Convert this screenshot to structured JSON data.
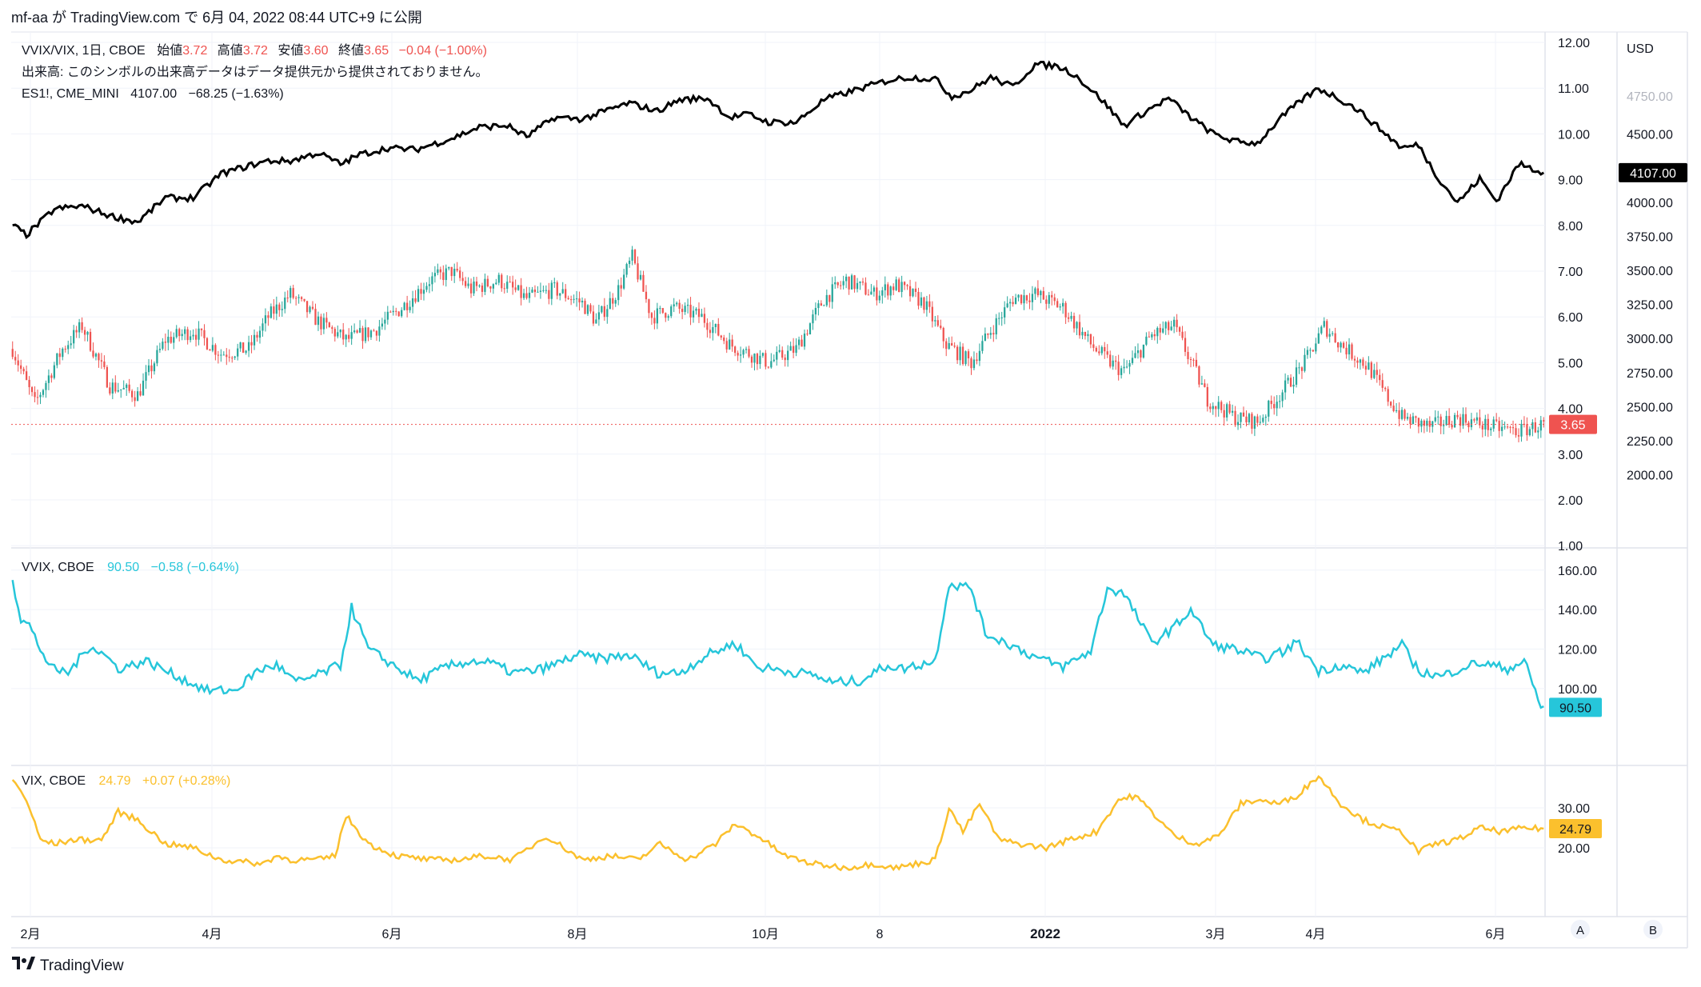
{
  "header": {
    "publish_text": "mf-aa が TradingView.com で 6月 04, 2022 08:44 UTC+9 に公開"
  },
  "footer": {
    "brand": "TradingView"
  },
  "scale_buttons": {
    "a": "A",
    "b": "B"
  },
  "colors": {
    "up": "#26a69a",
    "down": "#ef5350",
    "es": "#000000",
    "vvix": "#26c6da",
    "vix": "#fbc02d",
    "grid": "#f0f3fa",
    "border": "#e0e3eb",
    "text": "#131722"
  },
  "main_pane": {
    "legend": {
      "symbol": "VVIX/VIX, 1日, CBOE",
      "o_label": "始値",
      "o_val": "3.72",
      "h_label": "高値",
      "h_val": "3.72",
      "l_label": "安値",
      "l_val": "3.60",
      "c_label": "終値",
      "c_val": "3.65",
      "chg": "−0.04 (−1.00%)",
      "volume_note": "出来高: このシンボルの出来高データはデータ提供元から提供されておりません。",
      "es_symbol": "ES1!, CME_MINI",
      "es_val": "4107.00",
      "es_chg": "−68.25 (−1.63%)"
    },
    "right_axis_ticks": [
      "12.00",
      "11.00",
      "10.00",
      "9.00",
      "8.00",
      "7.00",
      "6.00",
      "5.00",
      "4.00",
      "3.00",
      "2.00",
      "1.00"
    ],
    "usd_label": "USD",
    "usd_ticks": [
      "4750.00",
      "4500.00",
      "4250.00",
      "4000.00",
      "3750.00",
      "3500.00",
      "3250.00",
      "3000.00",
      "2750.00",
      "2500.00",
      "2250.00",
      "2000.00"
    ],
    "last_ratio_label": "3.65",
    "last_es_label": "4107.00"
  },
  "vvix_pane": {
    "legend": {
      "symbol": "VVIX, CBOE",
      "val": "90.50",
      "chg": "−0.58 (−0.64%)"
    },
    "ticks": [
      "160.00",
      "140.00",
      "120.00",
      "100.00"
    ],
    "last_label": "90.50"
  },
  "vix_pane": {
    "legend": {
      "symbol": "VIX, CBOE",
      "val": "24.79",
      "chg": "+0.07 (+0.28%)"
    },
    "ticks": [
      "30.00",
      "20.00"
    ],
    "last_label": "24.79"
  },
  "x_axis": {
    "labels": [
      "2月",
      "4月",
      "6月",
      "8月",
      "10月",
      "8",
      "2022",
      "3月",
      "4月",
      "6月"
    ]
  },
  "chart_data": [
    {
      "type": "candlestick",
      "series_name": "VVIX/VIX",
      "ylim": [
        1,
        12
      ],
      "waypoints": [
        [
          0,
          5.3
        ],
        [
          8,
          4.1
        ],
        [
          18,
          5.3
        ],
        [
          25,
          5.8
        ],
        [
          35,
          4.5
        ],
        [
          45,
          4.3
        ],
        [
          55,
          5.5
        ],
        [
          65,
          5.7
        ],
        [
          75,
          5.2
        ],
        [
          85,
          5.3
        ],
        [
          92,
          6.0
        ],
        [
          100,
          6.5
        ],
        [
          110,
          5.9
        ],
        [
          120,
          5.5
        ],
        [
          130,
          5.7
        ],
        [
          140,
          6.2
        ],
        [
          150,
          6.8
        ],
        [
          158,
          7.0
        ],
        [
          165,
          6.6
        ],
        [
          175,
          6.8
        ],
        [
          185,
          6.4
        ],
        [
          195,
          6.6
        ],
        [
          205,
          6.3
        ],
        [
          210,
          5.9
        ],
        [
          218,
          6.6
        ],
        [
          223,
          7.3
        ],
        [
          230,
          6.0
        ],
        [
          238,
          6.2
        ],
        [
          248,
          6.0
        ],
        [
          258,
          5.4
        ],
        [
          265,
          5.2
        ],
        [
          272,
          5.0
        ],
        [
          282,
          5.3
        ],
        [
          292,
          6.4
        ],
        [
          300,
          6.8
        ],
        [
          310,
          6.5
        ],
        [
          318,
          6.7
        ],
        [
          328,
          6.3
        ],
        [
          336,
          5.4
        ],
        [
          345,
          5.0
        ],
        [
          352,
          5.7
        ],
        [
          360,
          6.4
        ],
        [
          368,
          6.5
        ],
        [
          378,
          6.2
        ],
        [
          388,
          5.4
        ],
        [
          395,
          5.0
        ],
        [
          400,
          4.8
        ],
        [
          410,
          5.6
        ],
        [
          418,
          5.8
        ],
        [
          425,
          4.9
        ],
        [
          430,
          4.2
        ],
        [
          440,
          3.8
        ],
        [
          448,
          3.7
        ],
        [
          456,
          4.3
        ],
        [
          465,
          5.0
        ],
        [
          472,
          5.8
        ],
        [
          478,
          5.4
        ],
        [
          488,
          4.9
        ],
        [
          494,
          4.3
        ],
        [
          500,
          3.8
        ],
        [
          510,
          3.6
        ],
        [
          520,
          3.8
        ],
        [
          532,
          3.6
        ],
        [
          542,
          3.5
        ],
        [
          551,
          3.65
        ]
      ]
    },
    {
      "type": "line",
      "series_name": "ES1!",
      "ylim": [
        1788,
        4917
      ],
      "waypoints": [
        [
          0,
          3780
        ],
        [
          5,
          3720
        ],
        [
          15,
          3880
        ],
        [
          25,
          3900
        ],
        [
          35,
          3840
        ],
        [
          45,
          3800
        ],
        [
          55,
          3950
        ],
        [
          65,
          3950
        ],
        [
          75,
          4100
        ],
        [
          85,
          4150
        ],
        [
          92,
          4180
        ],
        [
          100,
          4180
        ],
        [
          110,
          4230
        ],
        [
          118,
          4160
        ],
        [
          125,
          4220
        ],
        [
          135,
          4260
        ],
        [
          145,
          4250
        ],
        [
          158,
          4320
        ],
        [
          168,
          4390
        ],
        [
          178,
          4400
        ],
        [
          185,
          4330
        ],
        [
          195,
          4450
        ],
        [
          205,
          4440
        ],
        [
          215,
          4500
        ],
        [
          222,
          4540
        ],
        [
          232,
          4490
        ],
        [
          240,
          4560
        ],
        [
          250,
          4570
        ],
        [
          258,
          4450
        ],
        [
          265,
          4470
        ],
        [
          272,
          4420
        ],
        [
          282,
          4420
        ],
        [
          292,
          4560
        ],
        [
          305,
          4630
        ],
        [
          315,
          4680
        ],
        [
          322,
          4700
        ],
        [
          332,
          4690
        ],
        [
          338,
          4580
        ],
        [
          345,
          4620
        ],
        [
          352,
          4700
        ],
        [
          360,
          4640
        ],
        [
          368,
          4780
        ],
        [
          376,
          4770
        ],
        [
          382,
          4720
        ],
        [
          392,
          4560
        ],
        [
          400,
          4400
        ],
        [
          408,
          4490
        ],
        [
          416,
          4570
        ],
        [
          424,
          4450
        ],
        [
          432,
          4350
        ],
        [
          440,
          4300
        ],
        [
          448,
          4290
        ],
        [
          456,
          4440
        ],
        [
          464,
          4560
        ],
        [
          470,
          4630
        ],
        [
          476,
          4580
        ],
        [
          484,
          4500
        ],
        [
          492,
          4380
        ],
        [
          500,
          4260
        ],
        [
          506,
          4280
        ],
        [
          512,
          4100
        ],
        [
          520,
          3920
        ],
        [
          528,
          4070
        ],
        [
          534,
          3930
        ],
        [
          542,
          4160
        ],
        [
          551,
          4107
        ]
      ]
    },
    {
      "type": "line",
      "series_name": "VVIX",
      "ylim": [
        87,
        166
      ],
      "waypoints": [
        [
          0,
          155
        ],
        [
          3,
          135
        ],
        [
          6,
          132
        ],
        [
          10,
          120
        ],
        [
          14,
          110
        ],
        [
          20,
          108
        ],
        [
          28,
          122
        ],
        [
          34,
          116
        ],
        [
          38,
          110
        ],
        [
          48,
          114
        ],
        [
          58,
          107
        ],
        [
          70,
          99
        ],
        [
          80,
          99
        ],
        [
          88,
          109
        ],
        [
          95,
          112
        ],
        [
          102,
          103
        ],
        [
          110,
          107
        ],
        [
          118,
          112
        ],
        [
          122,
          141
        ],
        [
          128,
          120
        ],
        [
          138,
          111
        ],
        [
          146,
          104
        ],
        [
          156,
          111
        ],
        [
          165,
          114
        ],
        [
          172,
          113
        ],
        [
          180,
          108
        ],
        [
          188,
          109
        ],
        [
          195,
          112
        ],
        [
          203,
          117
        ],
        [
          212,
          115
        ],
        [
          222,
          117
        ],
        [
          232,
          108
        ],
        [
          240,
          108
        ],
        [
          250,
          117
        ],
        [
          260,
          123
        ],
        [
          268,
          111
        ],
        [
          278,
          109
        ],
        [
          288,
          107
        ],
        [
          295,
          103
        ],
        [
          305,
          104
        ],
        [
          315,
          112
        ],
        [
          320,
          110
        ],
        [
          332,
          114
        ],
        [
          337,
          153
        ],
        [
          345,
          151
        ],
        [
          350,
          128
        ],
        [
          358,
          123
        ],
        [
          368,
          116
        ],
        [
          378,
          111
        ],
        [
          388,
          119
        ],
        [
          394,
          151
        ],
        [
          400,
          148
        ],
        [
          410,
          123
        ],
        [
          418,
          131
        ],
        [
          424,
          140
        ],
        [
          432,
          122
        ],
        [
          440,
          120
        ],
        [
          450,
          115
        ],
        [
          458,
          119
        ],
        [
          462,
          124
        ],
        [
          470,
          109
        ],
        [
          478,
          112
        ],
        [
          486,
          108
        ],
        [
          494,
          116
        ],
        [
          500,
          122
        ],
        [
          506,
          109
        ],
        [
          514,
          106
        ],
        [
          522,
          111
        ],
        [
          528,
          113
        ],
        [
          538,
          110
        ],
        [
          544,
          114
        ],
        [
          550,
          91
        ]
      ]
    },
    {
      "type": "line",
      "series_name": "VIX",
      "ylim": [
        14,
        38
      ],
      "waypoints": [
        [
          0,
          37
        ],
        [
          5,
          32
        ],
        [
          10,
          22
        ],
        [
          15,
          21
        ],
        [
          22,
          22
        ],
        [
          32,
          22
        ],
        [
          38,
          29
        ],
        [
          45,
          27
        ],
        [
          55,
          21
        ],
        [
          65,
          20
        ],
        [
          75,
          17
        ],
        [
          90,
          16
        ],
        [
          95,
          18
        ],
        [
          100,
          17
        ],
        [
          110,
          17
        ],
        [
          116,
          18
        ],
        [
          120,
          28
        ],
        [
          128,
          21
        ],
        [
          138,
          18
        ],
        [
          150,
          17
        ],
        [
          160,
          17
        ],
        [
          170,
          18
        ],
        [
          180,
          17
        ],
        [
          192,
          23
        ],
        [
          205,
          17
        ],
        [
          215,
          18
        ],
        [
          225,
          17
        ],
        [
          233,
          21
        ],
        [
          243,
          17
        ],
        [
          253,
          21
        ],
        [
          260,
          26
        ],
        [
          268,
          23
        ],
        [
          278,
          18
        ],
        [
          288,
          16
        ],
        [
          300,
          15
        ],
        [
          310,
          16
        ],
        [
          318,
          15
        ],
        [
          325,
          16
        ],
        [
          332,
          17
        ],
        [
          337,
          30
        ],
        [
          342,
          24
        ],
        [
          348,
          31
        ],
        [
          355,
          22
        ],
        [
          362,
          21
        ],
        [
          372,
          20
        ],
        [
          380,
          22
        ],
        [
          390,
          24
        ],
        [
          398,
          32
        ],
        [
          404,
          33
        ],
        [
          410,
          29
        ],
        [
          418,
          23
        ],
        [
          426,
          21
        ],
        [
          434,
          23
        ],
        [
          442,
          31
        ],
        [
          448,
          32
        ],
        [
          456,
          31
        ],
        [
          462,
          33
        ],
        [
          470,
          38
        ],
        [
          478,
          31
        ],
        [
          486,
          27
        ],
        [
          494,
          25
        ],
        [
          500,
          24
        ],
        [
          506,
          19
        ],
        [
          512,
          21
        ],
        [
          520,
          22
        ],
        [
          528,
          25
        ],
        [
          536,
          24
        ],
        [
          544,
          25
        ],
        [
          550,
          24.79
        ]
      ]
    }
  ]
}
